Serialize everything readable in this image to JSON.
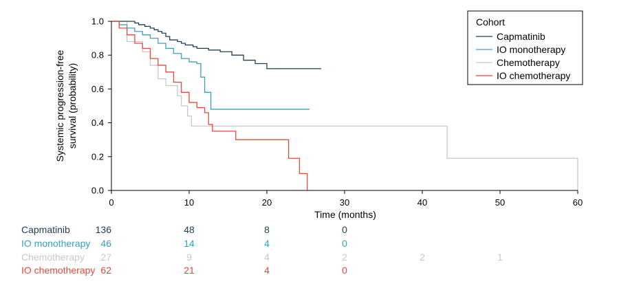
{
  "chart_data": {
    "type": "line",
    "subtype": "kaplan-meier step",
    "xlabel": "Time (months)",
    "ylabel_line1": "Systemic progression-free",
    "ylabel_line2": "survival (probability)",
    "xlim": [
      0,
      60
    ],
    "ylim": [
      0,
      1
    ],
    "x_ticks": [
      0,
      10,
      20,
      30,
      40,
      50,
      60
    ],
    "y_ticks": [
      {
        "value": 0.0,
        "label": "0.0"
      },
      {
        "value": 0.2,
        "label": "0.2"
      },
      {
        "value": 0.4,
        "label": "0.4"
      },
      {
        "value": 0.6,
        "label": "0.6"
      },
      {
        "value": 0.8,
        "label": "0.8"
      },
      {
        "value": 1.0,
        "label": "1.0"
      }
    ],
    "legend_title": "Cohort",
    "legend_position": "top-right",
    "series": [
      {
        "name": "Capmatinib",
        "color": "#1f3d4f",
        "steps": [
          [
            0,
            1.0
          ],
          [
            3,
            0.99
          ],
          [
            3.5,
            0.98
          ],
          [
            4.3,
            0.97
          ],
          [
            5,
            0.96
          ],
          [
            5.5,
            0.95
          ],
          [
            6,
            0.94
          ],
          [
            6.5,
            0.93
          ],
          [
            7,
            0.91
          ],
          [
            7.5,
            0.89
          ],
          [
            8.5,
            0.88
          ],
          [
            9,
            0.87
          ],
          [
            9.5,
            0.86
          ],
          [
            10.5,
            0.85
          ],
          [
            11,
            0.84
          ],
          [
            12.5,
            0.83
          ],
          [
            14,
            0.82
          ],
          [
            15.5,
            0.8
          ],
          [
            17,
            0.77
          ],
          [
            18.5,
            0.75
          ],
          [
            20,
            0.72
          ],
          [
            21,
            0.72
          ],
          [
            27,
            0.72
          ]
        ],
        "risk": [
          136,
          48,
          8,
          0
        ]
      },
      {
        "name": "IO monotherapy",
        "color": "#3a9fc0",
        "steps": [
          [
            0,
            1.0
          ],
          [
            1,
            0.98
          ],
          [
            2,
            0.96
          ],
          [
            3,
            0.94
          ],
          [
            4,
            0.92
          ],
          [
            5,
            0.9
          ],
          [
            6,
            0.87
          ],
          [
            7,
            0.84
          ],
          [
            8,
            0.81
          ],
          [
            9,
            0.78
          ],
          [
            10,
            0.76
          ],
          [
            11,
            0.75
          ],
          [
            11.5,
            0.67
          ],
          [
            12,
            0.58
          ],
          [
            12.8,
            0.48
          ],
          [
            25.5,
            0.48
          ]
        ],
        "risk": [
          46,
          14,
          4,
          0
        ]
      },
      {
        "name": "Chemotherapy",
        "color": "#c8c8c8",
        "steps": [
          [
            0,
            1.0
          ],
          [
            2,
            0.88
          ],
          [
            4,
            0.82
          ],
          [
            5,
            0.74
          ],
          [
            6,
            0.66
          ],
          [
            7,
            0.62
          ],
          [
            8.5,
            0.56
          ],
          [
            9,
            0.5
          ],
          [
            9.8,
            0.44
          ],
          [
            10.3,
            0.38
          ],
          [
            43,
            0.38
          ],
          [
            43.2,
            0.19
          ],
          [
            60,
            0.19
          ],
          [
            60,
            0.0
          ]
        ],
        "risk": [
          27,
          9,
          4,
          2,
          2,
          1
        ]
      },
      {
        "name": "IO chemotherapy",
        "color": "#e8483b",
        "steps": [
          [
            0,
            1.0
          ],
          [
            1,
            0.96
          ],
          [
            2,
            0.92
          ],
          [
            3,
            0.87
          ],
          [
            4,
            0.84
          ],
          [
            5,
            0.78
          ],
          [
            6,
            0.74
          ],
          [
            7,
            0.7
          ],
          [
            8,
            0.64
          ],
          [
            9,
            0.58
          ],
          [
            10,
            0.52
          ],
          [
            11,
            0.49
          ],
          [
            12,
            0.46
          ],
          [
            12.5,
            0.39
          ],
          [
            13,
            0.35
          ],
          [
            15.5,
            0.35
          ],
          [
            16,
            0.3
          ],
          [
            22.5,
            0.3
          ],
          [
            22.8,
            0.19
          ],
          [
            24,
            0.19
          ],
          [
            24.2,
            0.1
          ],
          [
            25,
            0.1
          ],
          [
            25.2,
            0.0
          ]
        ],
        "risk": [
          62,
          21,
          4,
          0
        ]
      }
    ],
    "risk_times": [
      0,
      10,
      20,
      30,
      40,
      50
    ]
  }
}
